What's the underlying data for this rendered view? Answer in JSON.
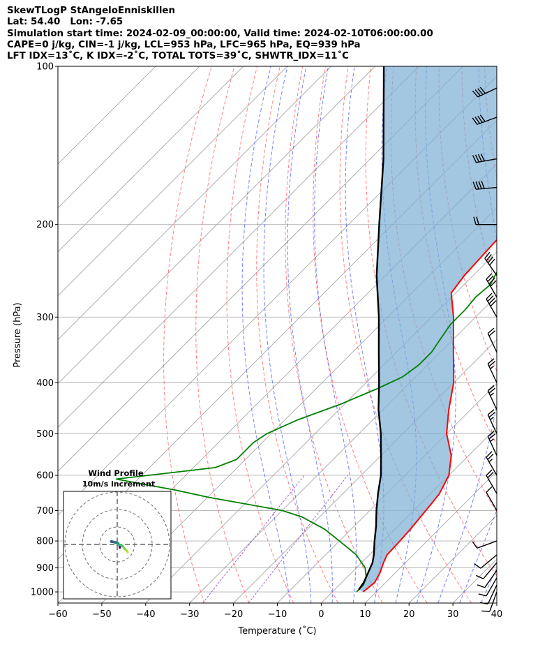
{
  "header": {
    "line1": "SkewTLogP StAngeloEnniskillen",
    "line2": "Lat: 54.40   Lon: -7.65",
    "line3": "Simulation start time: 2024-02-09_00:00:00, Valid time: 2024-02-10T06:00:00.00",
    "line4": "CAPE=0 j/kg, CIN=-1 j/kg, LCL=953 hPa, LFC=965 hPa, EQ=939 hPa",
    "line5": "LFT IDX=13˚C, K IDX=-2˚C, TOTAL TOTS=39˚C, SHWTR_IDX=11˚C"
  },
  "chart_data": {
    "type": "line",
    "xlabel": "Temperature (˚C)",
    "ylabel": "Pressure (hPa)",
    "xlim": [
      -60,
      40
    ],
    "ylim": [
      1050,
      100
    ],
    "y_scale": "log",
    "x_ticks": [
      "−60",
      "−50",
      "−40",
      "−30",
      "−20",
      "−10",
      "0",
      "10",
      "20",
      "30",
      "40"
    ],
    "y_ticks": [
      "100",
      "200",
      "300",
      "400",
      "500",
      "600",
      "700",
      "800",
      "900",
      "1000"
    ],
    "grid": true,
    "colors": {
      "temperature": "#ff0000",
      "dewpoint": "#008000",
      "parcel": "#000000",
      "cape_fill": "#7fb0d6",
      "dry_adiabat": "#ff6b6b",
      "moist_adiabat": "#5b6bff",
      "mixing_ratio": "#9b4dc9",
      "isotherm": "#a0a0a0"
    },
    "series": [
      {
        "key": "temperature",
        "points": [
          [
            1000,
            7
          ],
          [
            960,
            7.5
          ],
          [
            920,
            6.5
          ],
          [
            880,
            5
          ],
          [
            850,
            4
          ],
          [
            800,
            3.8
          ],
          [
            760,
            3.5
          ],
          [
            720,
            3
          ],
          [
            680,
            2.5
          ],
          [
            650,
            2
          ],
          [
            600,
            0
          ],
          [
            550,
            -4
          ],
          [
            500,
            -10
          ],
          [
            450,
            -15
          ],
          [
            400,
            -20
          ],
          [
            350,
            -27
          ],
          [
            300,
            -35
          ],
          [
            270,
            -41
          ],
          [
            250,
            -42
          ],
          [
            225,
            -42.5
          ],
          [
            200,
            -43
          ],
          [
            180,
            -46
          ],
          [
            160,
            -48
          ],
          [
            140,
            -51
          ],
          [
            120,
            -54
          ],
          [
            100,
            -61
          ]
        ]
      },
      {
        "key": "dewpoint",
        "points": [
          [
            1000,
            5.5
          ],
          [
            970,
            5.5
          ],
          [
            940,
            4.5
          ],
          [
            900,
            2
          ],
          [
            850,
            -3
          ],
          [
            800,
            -10
          ],
          [
            760,
            -16
          ],
          [
            720,
            -24
          ],
          [
            700,
            -30
          ],
          [
            660,
            -50
          ],
          [
            640,
            -59
          ],
          [
            610,
            -75
          ],
          [
            580,
            -55
          ],
          [
            560,
            -52
          ],
          [
            540,
            -52
          ],
          [
            520,
            -52
          ],
          [
            500,
            -51
          ],
          [
            470,
            -47
          ],
          [
            440,
            -41
          ],
          [
            410,
            -36
          ],
          [
            390,
            -33
          ],
          [
            370,
            -32
          ],
          [
            350,
            -32
          ],
          [
            330,
            -33
          ],
          [
            310,
            -34
          ],
          [
            290,
            -34
          ],
          [
            275,
            -34.5
          ],
          [
            260,
            -34
          ],
          [
            250,
            -35
          ],
          [
            230,
            -37
          ],
          [
            210,
            -39
          ],
          [
            195,
            -42
          ],
          [
            180,
            -44.5
          ],
          [
            170,
            -45
          ],
          [
            160,
            -41
          ],
          [
            140,
            -36
          ],
          [
            120,
            -31
          ],
          [
            100,
            -28
          ]
        ]
      },
      {
        "key": "parcel",
        "points": [
          [
            990,
            5.5
          ],
          [
            960,
            5
          ],
          [
            920,
            3.8
          ],
          [
            880,
            2.5
          ],
          [
            850,
            1
          ],
          [
            800,
            -2
          ],
          [
            750,
            -5
          ],
          [
            700,
            -8.5
          ],
          [
            650,
            -12
          ],
          [
            600,
            -15.5
          ],
          [
            550,
            -20
          ],
          [
            500,
            -25
          ],
          [
            450,
            -31
          ],
          [
            400,
            -37
          ],
          [
            350,
            -44
          ],
          [
            300,
            -52
          ],
          [
            250,
            -62
          ],
          [
            200,
            -73
          ],
          [
            150,
            -87
          ],
          [
            100,
            -108
          ]
        ]
      }
    ],
    "wind_barbs": {
      "color": "#000000",
      "points": [
        {
          "p": 1000,
          "dir": 200,
          "spd": 5
        },
        {
          "p": 970,
          "dir": 205,
          "spd": 6
        },
        {
          "p": 940,
          "dir": 210,
          "spd": 6
        },
        {
          "p": 910,
          "dir": 215,
          "spd": 5
        },
        {
          "p": 880,
          "dir": 220,
          "spd": 5
        },
        {
          "p": 850,
          "dir": 230,
          "spd": 4
        },
        {
          "p": 800,
          "dir": 250,
          "spd": 4
        },
        {
          "p": 700,
          "dir": 330,
          "spd": 6
        },
        {
          "p": 650,
          "dir": 330,
          "spd": 10
        },
        {
          "p": 600,
          "dir": 330,
          "spd": 12
        },
        {
          "p": 550,
          "dir": 335,
          "spd": 12
        },
        {
          "p": 500,
          "dir": 335,
          "spd": 12
        },
        {
          "p": 450,
          "dir": 335,
          "spd": 12
        },
        {
          "p": 400,
          "dir": 335,
          "spd": 12
        },
        {
          "p": 350,
          "dir": 335,
          "spd": 10
        },
        {
          "p": 300,
          "dir": 330,
          "spd": 20
        },
        {
          "p": 275,
          "dir": 330,
          "spd": 20
        },
        {
          "p": 250,
          "dir": 325,
          "spd": 20
        },
        {
          "p": 200,
          "dir": 270,
          "spd": 10
        },
        {
          "p": 170,
          "dir": 265,
          "spd": 20
        },
        {
          "p": 150,
          "dir": 260,
          "spd": 20
        },
        {
          "p": 125,
          "dir": 250,
          "spd": 20
        },
        {
          "p": 110,
          "dir": 245,
          "spd": 20
        }
      ]
    },
    "hodograph": {
      "title": "Wind Profile",
      "subtitle": "10m/s increment",
      "increment_ms": 10,
      "rings": 3,
      "points": [
        [
          1.5,
          -1.8
        ],
        [
          1.6,
          -1
        ],
        [
          1,
          0
        ],
        [
          0,
          0.8
        ],
        [
          -1,
          1.2
        ],
        [
          -2,
          1.4
        ],
        [
          -3,
          1.5
        ],
        [
          -3.5,
          1.6
        ],
        [
          -3.4,
          1.8
        ],
        [
          -2.6,
          1.6
        ],
        [
          -1.8,
          1.3
        ],
        [
          -1.2,
          1.0
        ],
        [
          -0.3,
          0.7
        ],
        [
          0.2,
          0.5
        ],
        [
          0.5,
          0.8
        ],
        [
          0.7,
          0.2
        ],
        [
          0.4,
          -0.1
        ],
        [
          0.8,
          -0.1
        ],
        [
          1.5,
          -0.2
        ],
        [
          2.2,
          -0.4
        ],
        [
          3,
          -0.9
        ],
        [
          3.6,
          -1.6
        ],
        [
          4.0,
          -2.2
        ],
        [
          4.3,
          -2.6
        ],
        [
          4.7,
          -2.9
        ],
        [
          5.0,
          -3.2
        ],
        [
          5.3,
          -3.5
        ],
        [
          5.5,
          -3.8
        ],
        [
          5.8,
          -4.1
        ],
        [
          6.0,
          -4.4
        ]
      ]
    }
  }
}
